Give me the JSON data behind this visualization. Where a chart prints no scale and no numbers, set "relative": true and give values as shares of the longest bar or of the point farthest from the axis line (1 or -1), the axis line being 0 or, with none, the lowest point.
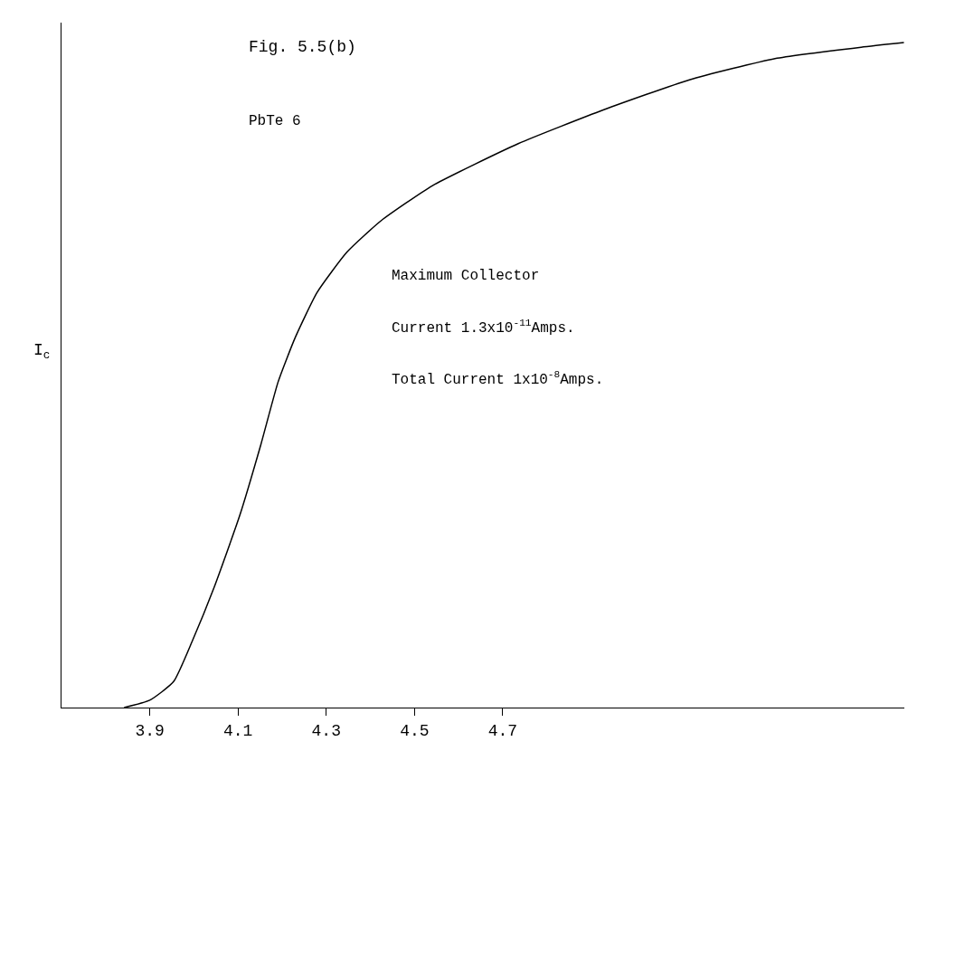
{
  "chart_data": {
    "type": "line",
    "title": "Fig. 5.5(b)",
    "subtitle": "PbTe 6",
    "ylabel": "I$_{c}$",
    "relative": true,
    "annotations": [
      "Maximum Collector",
      "Current 1.3x10$^{-11}$Amps.",
      "Total Current 1x10$^{-8}$Amps."
    ],
    "series": [
      {
        "color": "#000000",
        "x": [
          3.842,
          3.9,
          3.954,
          3.997,
          4.046,
          4.104,
          4.152,
          4.191,
          4.23,
          4.279,
          4.347,
          4.424,
          4.541,
          4.735,
          4.929,
          5.123,
          5.317,
          5.512,
          5.609
        ],
        "values": [
          0,
          0.011,
          0.039,
          0.101,
          0.181,
          0.289,
          0.396,
          0.49,
          0.557,
          0.624,
          0.685,
          0.732,
          0.785,
          0.848,
          0.899,
          0.944,
          0.976,
          0.993,
          1.0
        ]
      }
    ],
    "xlim": [
      3.7,
      5.61
    ],
    "xticks": [
      3.9,
      4.1,
      4.3,
      4.5,
      4.7
    ],
    "marker": "none",
    "line_style": "solid"
  }
}
